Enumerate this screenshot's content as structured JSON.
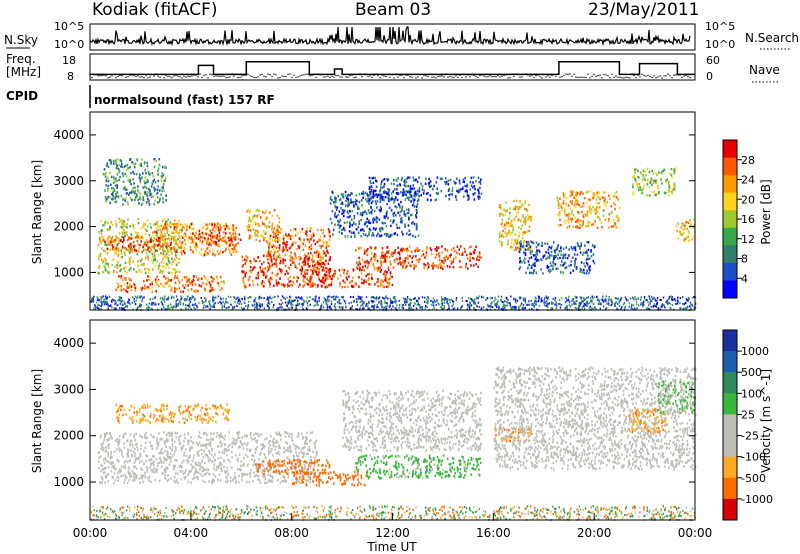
{
  "header": {
    "station": "Kodiak (fitACF)",
    "beam": "Beam 03",
    "date": "23/May/2011",
    "program": "normalsound (fast) 157 RF"
  },
  "strip_labels": {
    "nsky": "N.Sky",
    "freq_line1": "Freq.",
    "freq_line2": "[MHz]",
    "cpid": "CPID",
    "nsearch": "N.Search",
    "nave": "Nave",
    "nsky_ticks": [
      "10^5",
      "10^0"
    ],
    "nsearch_ticks": [
      "10^5",
      "10^0"
    ],
    "freq_ticks": [
      "18",
      "8"
    ],
    "nave_ticks": [
      "60",
      "0"
    ]
  },
  "colors": {
    "power_scale": [
      "#0000ff",
      "#1f4fc8",
      "#2f7d6b",
      "#3aa84a",
      "#9ccc2c",
      "#ffd21f",
      "#ff9a00",
      "#ff5a00",
      "#e60000"
    ],
    "velocity_scale": [
      "#d90000",
      "#ff6a00",
      "#ffaa22",
      "#bdbdb6",
      "#bdbdb6",
      "#38b838",
      "#2e8b57",
      "#1c5fb0",
      "#1a2fa0"
    ],
    "ground_scatter": "#bdbdb6"
  },
  "chart_data": [
    {
      "type": "heatmap",
      "title": "",
      "xlabel": "Time UT",
      "ylabel": "Slant Range [km]",
      "x_ticks": [
        "00:00",
        "04:00",
        "08:00",
        "12:00",
        "16:00",
        "20:00",
        "00:00"
      ],
      "x_range_hours": [
        0,
        24
      ],
      "y_ticks": [
        "1000",
        "2000",
        "3000",
        "4000"
      ],
      "y_range_km": [
        180,
        4500
      ],
      "colorbar_label": "Power [dB]",
      "colorbar_ticks": [
        "28",
        "24",
        "20",
        "16",
        "12",
        "8",
        "4"
      ],
      "colorbar_range": [
        0,
        32
      ],
      "regions": [
        {
          "t": [
            0.3,
            3.6
          ],
          "r": [
            1000,
            2200
          ],
          "p": 18
        },
        {
          "t": [
            0.5,
            3.2
          ],
          "r": [
            1500,
            1800
          ],
          "p": 28
        },
        {
          "t": [
            1.0,
            5.3
          ],
          "r": [
            600,
            950
          ],
          "p": 26
        },
        {
          "t": [
            2.5,
            5.8
          ],
          "r": [
            1400,
            2100
          ],
          "p": 24
        },
        {
          "t": [
            4.0,
            6.0
          ],
          "r": [
            1600,
            1900
          ],
          "p": 28
        },
        {
          "t": [
            0.5,
            3.0
          ],
          "r": [
            2500,
            3500
          ],
          "p": 10
        },
        {
          "t": [
            6.0,
            9.5
          ],
          "r": [
            700,
            1400
          ],
          "p": 28
        },
        {
          "t": [
            7.0,
            9.5
          ],
          "r": [
            1200,
            2000
          ],
          "p": 26
        },
        {
          "t": [
            6.2,
            7.5
          ],
          "r": [
            1700,
            2400
          ],
          "p": 22
        },
        {
          "t": [
            8.5,
            12.0
          ],
          "r": [
            700,
            1100
          ],
          "p": 28
        },
        {
          "t": [
            10.5,
            15.5
          ],
          "r": [
            1100,
            1600
          ],
          "p": 28
        },
        {
          "t": [
            9.5,
            13.0
          ],
          "r": [
            1800,
            2800
          ],
          "p": 6
        },
        {
          "t": [
            11.0,
            15.5
          ],
          "r": [
            2600,
            3100
          ],
          "p": 5
        },
        {
          "t": [
            16.2,
            17.5
          ],
          "r": [
            1500,
            2600
          ],
          "p": 20
        },
        {
          "t": [
            17.0,
            20.0
          ],
          "r": [
            1000,
            1700
          ],
          "p": 6
        },
        {
          "t": [
            18.5,
            21.0
          ],
          "r": [
            2000,
            2800
          ],
          "p": 22
        },
        {
          "t": [
            21.5,
            23.2
          ],
          "r": [
            2700,
            3300
          ],
          "p": 16
        },
        {
          "t": [
            23.2,
            24.0
          ],
          "r": [
            1700,
            2200
          ],
          "p": 22
        }
      ]
    },
    {
      "type": "heatmap",
      "title": "",
      "xlabel": "Time UT",
      "ylabel": "Slant Range [km]",
      "x_ticks": [
        "00:00",
        "04:00",
        "08:00",
        "12:00",
        "16:00",
        "20:00",
        "00:00"
      ],
      "x_range_hours": [
        0,
        24
      ],
      "y_ticks": [
        "1000",
        "2000",
        "3000",
        "4000"
      ],
      "y_range_km": [
        180,
        4500
      ],
      "colorbar_label": "Velocity [m s^-1]",
      "colorbar_ticks": [
        "1000",
        "500",
        "100",
        "25",
        "-25",
        "-100",
        "-500",
        "-1000"
      ],
      "regions": [
        {
          "t": [
            0.3,
            9.0
          ],
          "r": [
            1000,
            2100
          ],
          "v": 0
        },
        {
          "t": [
            1.0,
            5.5
          ],
          "r": [
            2300,
            2700
          ],
          "v": -150
        },
        {
          "t": [
            6.5,
            9.5
          ],
          "r": [
            1200,
            1500
          ],
          "v": -300
        },
        {
          "t": [
            8.0,
            11.0
          ],
          "r": [
            950,
            1250
          ],
          "v": -400
        },
        {
          "t": [
            10.5,
            15.5
          ],
          "r": [
            1100,
            1600
          ],
          "v": 120
        },
        {
          "t": [
            10.0,
            15.5
          ],
          "r": [
            1700,
            3000
          ],
          "v": 0
        },
        {
          "t": [
            16.0,
            17.5
          ],
          "r": [
            1900,
            2200
          ],
          "v": -200
        },
        {
          "t": [
            16.0,
            24.0
          ],
          "r": [
            1300,
            3500
          ],
          "v": 0
        },
        {
          "t": [
            21.3,
            22.8
          ],
          "r": [
            2100,
            2600
          ],
          "v": -150
        },
        {
          "t": [
            22.5,
            24.0
          ],
          "r": [
            2500,
            3200
          ],
          "v": 80
        }
      ]
    }
  ]
}
